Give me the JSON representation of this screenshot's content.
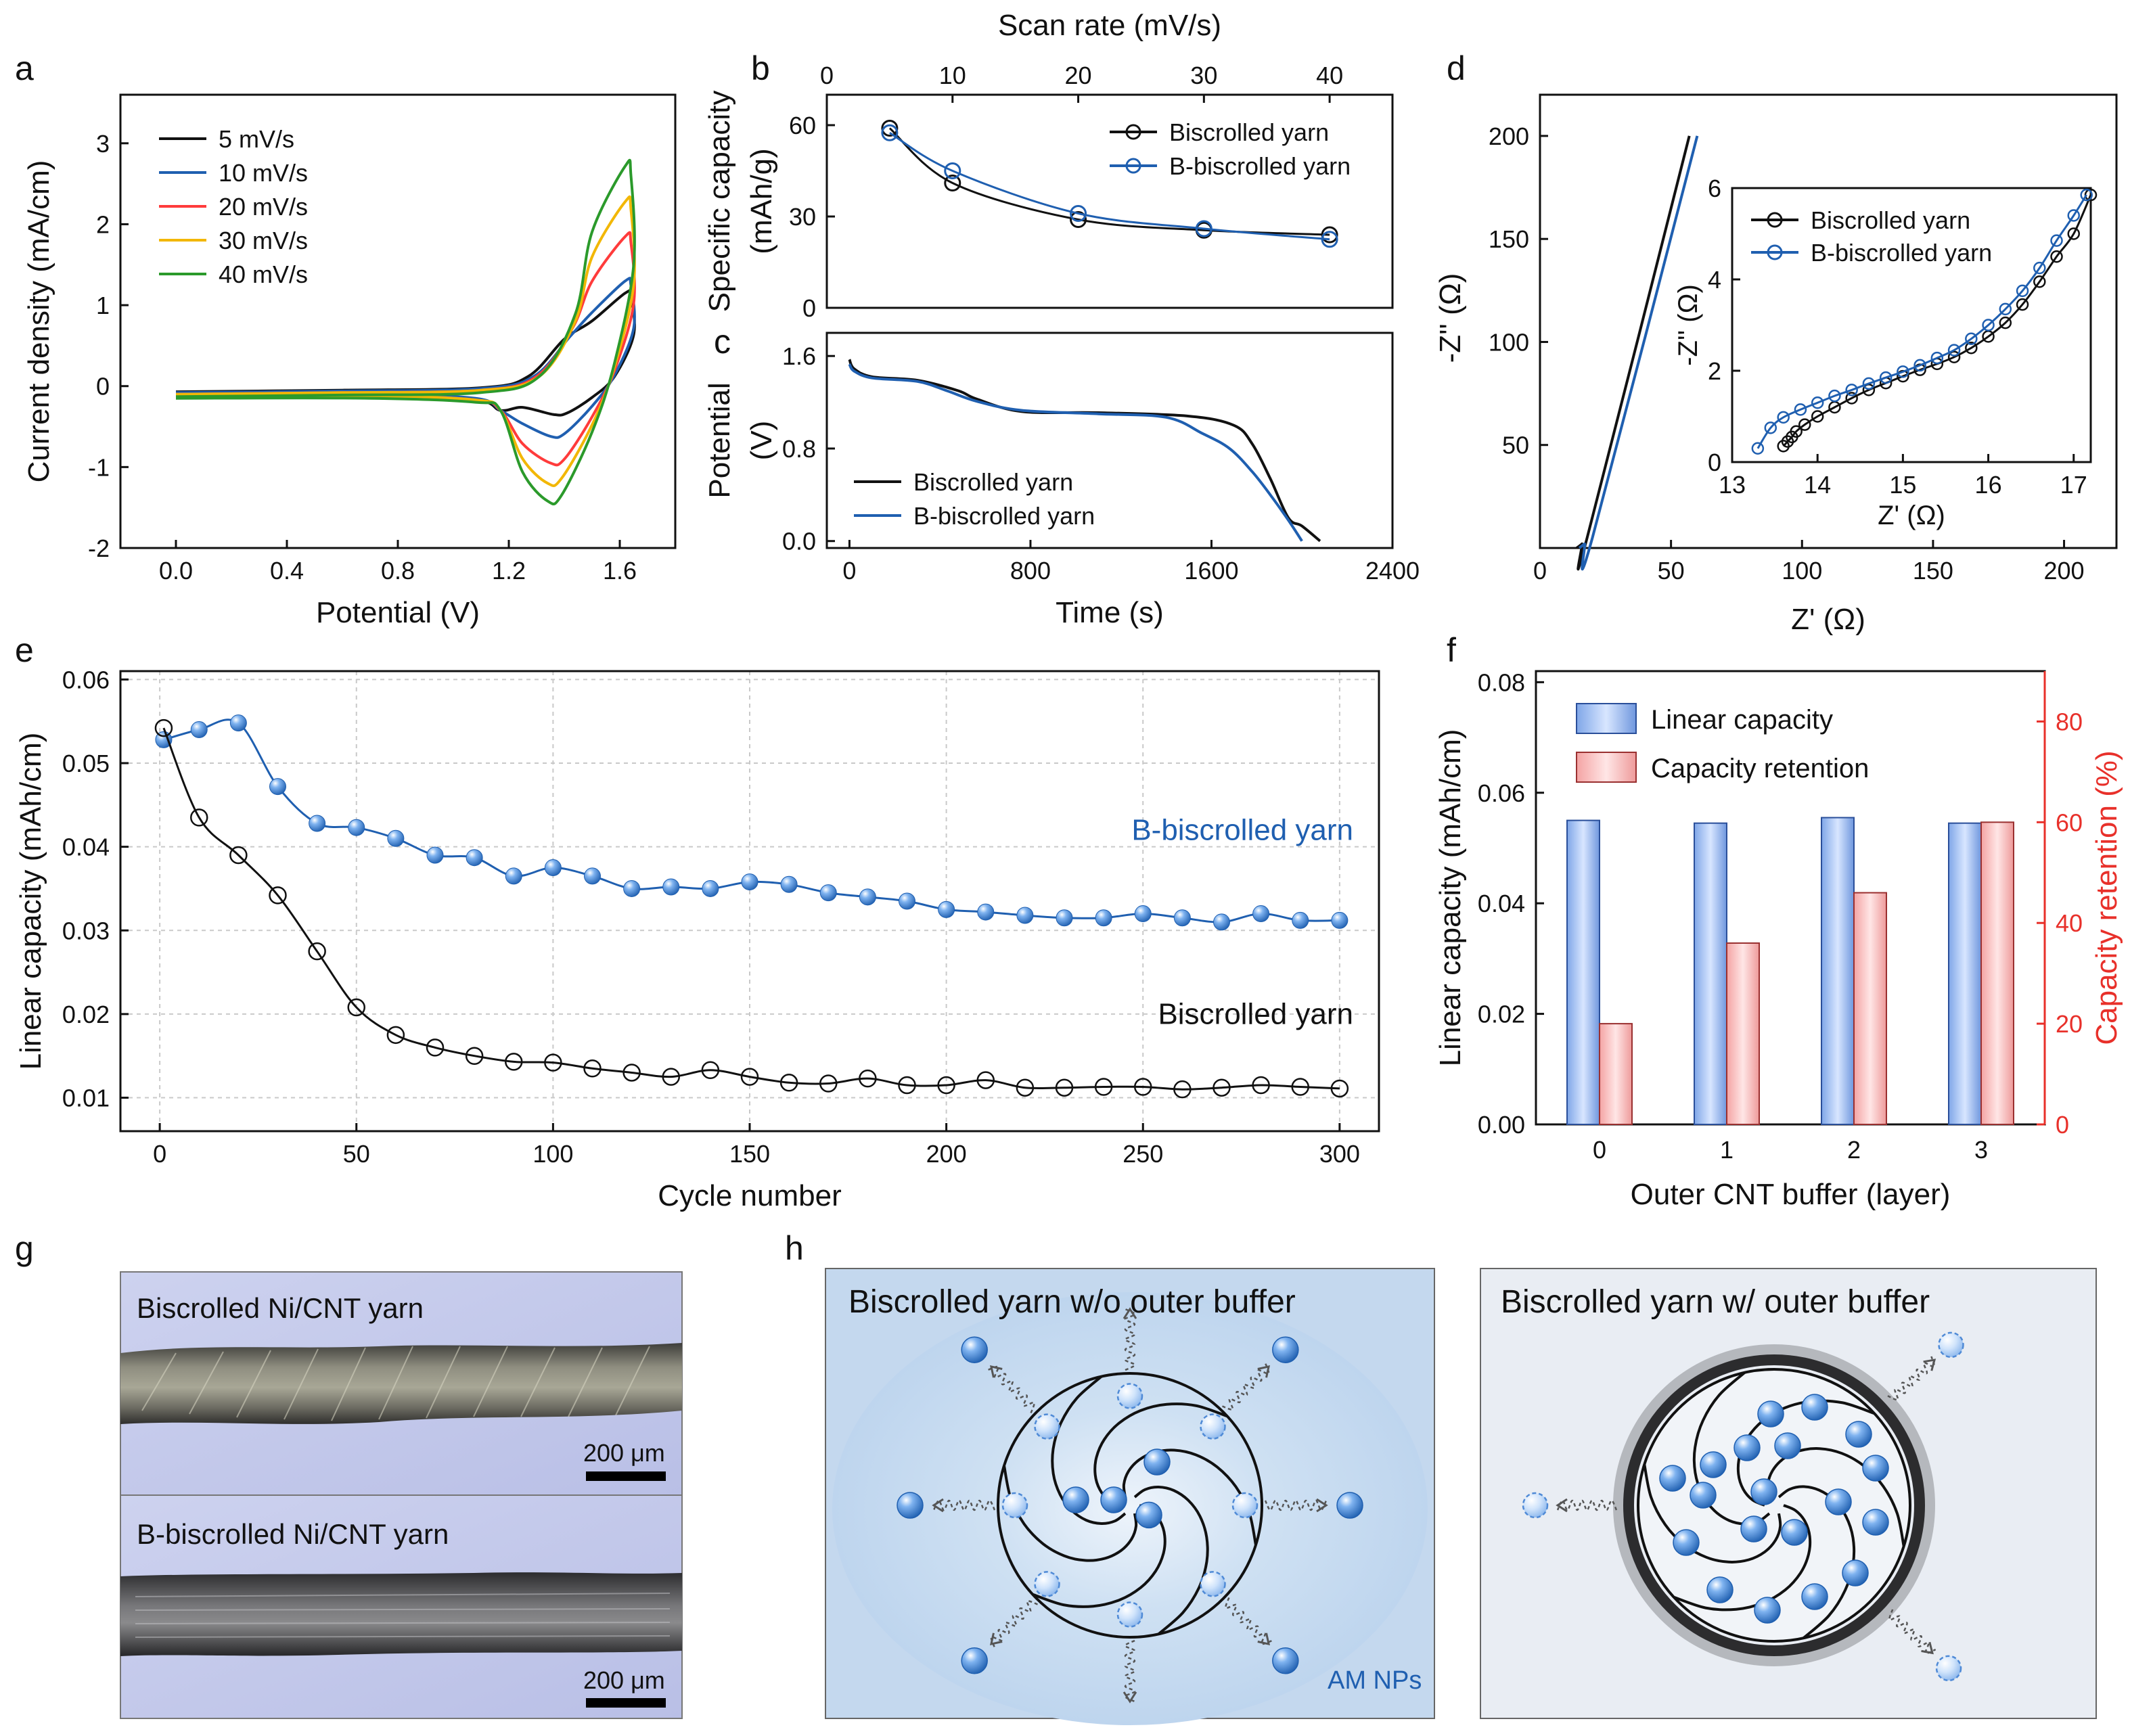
{
  "panels": {
    "a": "a",
    "b": "b",
    "c": "c",
    "d": "d",
    "e": "e",
    "f": "f",
    "g": "g",
    "h": "h"
  },
  "colors": {
    "black": "#111111",
    "blue": "#1f5fb0",
    "red": "#ff3b3b",
    "orange": "#f2b705",
    "green": "#2b9a2b",
    "redtext": "#e8302a"
  },
  "chart_data": [
    {
      "id": "a",
      "type": "line",
      "title": "",
      "xlabel": "Potential (V)",
      "ylabel": "Current density (mA/cm)",
      "xlim": [
        -0.2,
        1.8
      ],
      "ylim": [
        -2,
        3.6
      ],
      "xticks": [
        "0.0",
        "0.4",
        "0.8",
        "1.2",
        "1.6"
      ],
      "yticks": [
        "-2",
        "-1",
        "0",
        "1",
        "2",
        "3"
      ],
      "legend_position": "top-left",
      "series": [
        {
          "name": "5 mV/s",
          "color": "#111111",
          "peak": [
            1.62,
            1.15
          ],
          "red": [
            1.36,
            -0.35
          ],
          "pstart": 1.32,
          "base": -0.07,
          "cb": -0.12
        },
        {
          "name": "10 mV/s",
          "color": "#1f5fb0",
          "peak": [
            1.62,
            1.3
          ],
          "red": [
            1.35,
            -0.62
          ],
          "pstart": 1.34,
          "base": -0.08,
          "cb": -0.1
        },
        {
          "name": "20 mV/s",
          "color": "#ff3b3b",
          "peak": [
            1.62,
            1.85
          ],
          "red": [
            1.35,
            -0.95
          ],
          "pstart": 1.35,
          "base": -0.1,
          "cb": -0.12
        },
        {
          "name": "30 mV/s",
          "color": "#f2b705",
          "peak": [
            1.62,
            2.28
          ],
          "red": [
            1.34,
            -1.2
          ],
          "pstart": 1.36,
          "base": -0.1,
          "cb": -0.12
        },
        {
          "name": "40 mV/s",
          "color": "#2b9a2b",
          "peak": [
            1.62,
            2.72
          ],
          "red": [
            1.34,
            -1.42
          ],
          "pstart": 1.36,
          "base": -0.13,
          "cb": -0.15
        }
      ]
    },
    {
      "id": "b",
      "type": "line",
      "title": "",
      "xlabel": "Scan rate (mV/s)",
      "ylabel": "Specific capacity (mAh/g)",
      "xlim": [
        0,
        45
      ],
      "ylim": [
        0,
        70
      ],
      "xticks": [
        "0",
        "10",
        "20",
        "30",
        "40"
      ],
      "yticks": [
        "0",
        "30",
        "60"
      ],
      "legend_position": "top-right",
      "series": [
        {
          "name": "Biscrolled yarn",
          "color": "#111111",
          "x": [
            5,
            10,
            20,
            30,
            40
          ],
          "y": [
            59,
            41,
            29,
            25.5,
            24
          ]
        },
        {
          "name": "B-biscrolled yarn",
          "color": "#1f5fb0",
          "x": [
            5,
            10,
            20,
            30,
            40
          ],
          "y": [
            57.5,
            45,
            31,
            26,
            22.5
          ]
        }
      ]
    },
    {
      "id": "c",
      "type": "line",
      "title": "",
      "xlabel": "Time (s)",
      "ylabel": "Potential (V)",
      "xlim": [
        -100,
        2400
      ],
      "ylim": [
        -0.06,
        1.8
      ],
      "xticks": [
        "0",
        "800",
        "1600",
        "2400"
      ],
      "yticks": [
        "0.0",
        "0.8",
        "1.6"
      ],
      "legend_position": "bottom-left",
      "series": [
        {
          "name": "Biscrolled yarn",
          "color": "#111111",
          "x": [
            0,
            20,
            100,
            300,
            480,
            560,
            760,
            1100,
            1500,
            1700,
            1780,
            1860,
            1940,
            2000,
            2080
          ],
          "y": [
            1.57,
            1.49,
            1.42,
            1.39,
            1.3,
            1.23,
            1.12,
            1.11,
            1.08,
            1.0,
            0.84,
            0.54,
            0.2,
            0.13,
            0.0
          ]
        },
        {
          "name": "B-biscrolled yarn",
          "color": "#1f5fb0",
          "x": [
            0,
            20,
            100,
            300,
            430,
            560,
            760,
            1100,
            1400,
            1560,
            1680,
            1780,
            1860,
            1940,
            2000
          ],
          "y": [
            1.53,
            1.47,
            1.41,
            1.38,
            1.3,
            1.21,
            1.13,
            1.1,
            1.07,
            0.93,
            0.8,
            0.6,
            0.4,
            0.18,
            0.0
          ]
        }
      ]
    },
    {
      "id": "d",
      "type": "line",
      "title": "",
      "xlabel": "Z' (Ω)",
      "ylabel": "-Z'' (Ω)",
      "xlim": [
        0,
        220
      ],
      "ylim": [
        0,
        220
      ],
      "xticks": [
        "0",
        "50",
        "100",
        "150",
        "200"
      ],
      "yticks": [
        "50",
        "100",
        "150",
        "200"
      ],
      "series": [
        {
          "name": "Biscrolled yarn",
          "color": "#111111",
          "x": [
            14,
            16,
            18,
            57
          ],
          "y": [
            0,
            2,
            5,
            200
          ]
        },
        {
          "name": "B-biscrolled yarn",
          "color": "#1f5fb0",
          "x": [
            15,
            17,
            20,
            60
          ],
          "y": [
            0,
            2,
            5,
            200
          ]
        }
      ],
      "inset": {
        "xlabel": "Z' (Ω)",
        "ylabel": "-Z'' (Ω)",
        "xlim": [
          13,
          17.2
        ],
        "ylim": [
          0,
          6
        ],
        "xticks": [
          "13",
          "14",
          "15",
          "16",
          "17"
        ],
        "yticks": [
          "0",
          "2",
          "4",
          "6"
        ],
        "legend_position": "top-left",
        "series": [
          {
            "name": "Biscrolled yarn",
            "color": "#111111",
            "x": [
              13.6,
              13.65,
              13.7,
              13.75,
              13.85,
              14.0,
              14.2,
              14.4,
              14.6,
              14.8,
              15.0,
              15.2,
              15.4,
              15.6,
              15.8,
              16.0,
              16.2,
              16.4,
              16.6,
              16.8,
              17.0,
              17.2
            ],
            "y": [
              0.35,
              0.45,
              0.55,
              0.67,
              0.82,
              1.0,
              1.2,
              1.4,
              1.58,
              1.73,
              1.88,
              2.02,
              2.15,
              2.3,
              2.5,
              2.75,
              3.05,
              3.45,
              3.95,
              4.5,
              5.0,
              5.85
            ]
          },
          {
            "name": "B-biscrolled yarn",
            "color": "#1f5fb0",
            "x": [
              13.3,
              13.45,
              13.6,
              13.8,
              14.0,
              14.2,
              14.4,
              14.6,
              14.8,
              15.0,
              15.2,
              15.4,
              15.6,
              15.8,
              16.0,
              16.2,
              16.4,
              16.6,
              16.8,
              17.0,
              17.15
            ],
            "y": [
              0.3,
              0.75,
              0.98,
              1.15,
              1.3,
              1.45,
              1.58,
              1.72,
              1.85,
              1.98,
              2.12,
              2.28,
              2.45,
              2.7,
              3.0,
              3.35,
              3.75,
              4.25,
              4.85,
              5.4,
              5.85
            ]
          }
        ]
      }
    },
    {
      "id": "e",
      "type": "line",
      "title": "",
      "xlabel": "Cycle number",
      "ylabel": "Linear capacity (mAh/cm)",
      "xlim": [
        -10,
        310
      ],
      "ylim": [
        0.006,
        0.061
      ],
      "xticks": [
        "0",
        "50",
        "100",
        "150",
        "200",
        "250",
        "300"
      ],
      "yticks": [
        "0.01",
        "0.02",
        "0.03",
        "0.04",
        "0.05",
        "0.06"
      ],
      "series": [
        {
          "name": "B-biscrolled yarn",
          "label": "B-biscrolled yarn",
          "color": "#1f5fb0",
          "x": [
            1,
            10,
            20,
            30,
            40,
            50,
            60,
            70,
            80,
            90,
            100,
            110,
            120,
            130,
            140,
            150,
            160,
            170,
            180,
            190,
            200,
            210,
            220,
            230,
            240,
            250,
            260,
            270,
            280,
            290,
            300
          ],
          "y": [
            0.0528,
            0.054,
            0.0548,
            0.0472,
            0.0428,
            0.0423,
            0.041,
            0.039,
            0.0387,
            0.0365,
            0.0375,
            0.0365,
            0.035,
            0.0352,
            0.035,
            0.0358,
            0.0355,
            0.0345,
            0.034,
            0.0335,
            0.0325,
            0.0322,
            0.0318,
            0.0315,
            0.0315,
            0.032,
            0.0315,
            0.031,
            0.032,
            0.0312,
            0.0312
          ]
        },
        {
          "name": "Biscrolled yarn",
          "label": "Biscrolled yarn",
          "color": "#111111",
          "x": [
            1,
            10,
            20,
            30,
            40,
            50,
            60,
            70,
            80,
            90,
            100,
            110,
            120,
            130,
            140,
            150,
            160,
            170,
            180,
            190,
            200,
            210,
            220,
            230,
            240,
            250,
            260,
            270,
            280,
            290,
            300
          ],
          "y": [
            0.0542,
            0.0435,
            0.039,
            0.0342,
            0.0275,
            0.0208,
            0.0175,
            0.016,
            0.015,
            0.0143,
            0.0142,
            0.0135,
            0.013,
            0.0125,
            0.0133,
            0.0125,
            0.0118,
            0.0117,
            0.0123,
            0.0115,
            0.0115,
            0.0121,
            0.0112,
            0.0112,
            0.0113,
            0.0113,
            0.011,
            0.0112,
            0.0115,
            0.0113,
            0.0111
          ]
        }
      ]
    },
    {
      "id": "f",
      "type": "bar",
      "title": "",
      "xlabel": "Outer CNT buffer (layer)",
      "ylabel": "Linear capacity (mAh/cm)",
      "ylabel2": "Capacity retention (%)",
      "categories": [
        "0",
        "1",
        "2",
        "3"
      ],
      "ylim": [
        0,
        0.082
      ],
      "ylim2": [
        0,
        90
      ],
      "yticks": [
        "0.00",
        "0.02",
        "0.04",
        "0.06",
        "0.08"
      ],
      "yticks2": [
        "0",
        "20",
        "40",
        "60",
        "80"
      ],
      "legend_position": "top-left",
      "series": [
        {
          "name": "Linear capacity",
          "axis": "left",
          "values": [
            0.055,
            0.0545,
            0.0555,
            0.0545
          ]
        },
        {
          "name": "Capacity retention",
          "axis": "right",
          "values": [
            20,
            36,
            46,
            60
          ]
        }
      ]
    }
  ],
  "images": {
    "g_top_label": "Biscrolled Ni/CNT yarn",
    "g_bottom_label": "B-biscrolled Ni/CNT yarn",
    "scale_top": "200 μm",
    "scale_bottom": "200 μm"
  },
  "schematics": {
    "left_title": "Biscrolled yarn w/o outer buffer",
    "right_title": "Biscrolled yarn w/ outer buffer",
    "np_label": "AM NPs"
  }
}
